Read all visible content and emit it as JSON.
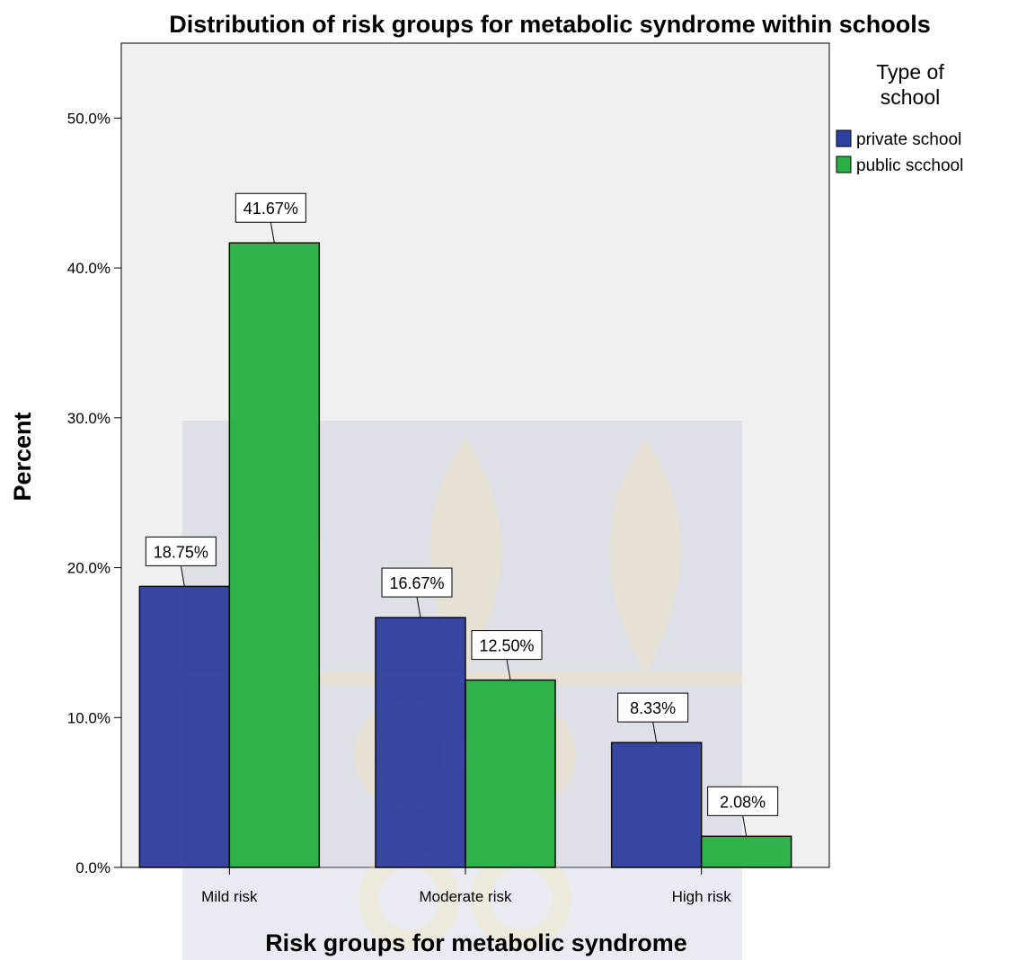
{
  "chart_data": {
    "type": "bar",
    "title": "Distribution of risk groups for metabolic syndrome within schools",
    "xlabel": "Risk groups for metabolic syndrome",
    "ylabel": "Percent",
    "categories": [
      "Mild risk",
      "Moderate risk",
      "High risk"
    ],
    "series": [
      {
        "name": "private school",
        "values": [
          18.75,
          16.67,
          8.33
        ],
        "color": "#2f3f9e"
      },
      {
        "name": "public scchool",
        "values": [
          41.67,
          12.5,
          2.08
        ],
        "color": "#27b043"
      }
    ],
    "data_labels": [
      [
        "18.75%",
        "16.67%",
        "8.33%"
      ],
      [
        "41.67%",
        "12.50%",
        "2.08%"
      ]
    ],
    "ylim": [
      0,
      55
    ],
    "yticks": [
      0,
      10,
      20,
      30,
      40,
      50
    ],
    "ytick_labels": [
      "0.0%",
      "10.0%",
      "20.0%",
      "30.0%",
      "40.0%",
      "50.0%"
    ],
    "legend": {
      "title_lines": [
        "Type of",
        "school"
      ],
      "position": "right"
    },
    "grid": false,
    "plot_background": "#f0f0f0",
    "bar_outline": "#000000"
  }
}
